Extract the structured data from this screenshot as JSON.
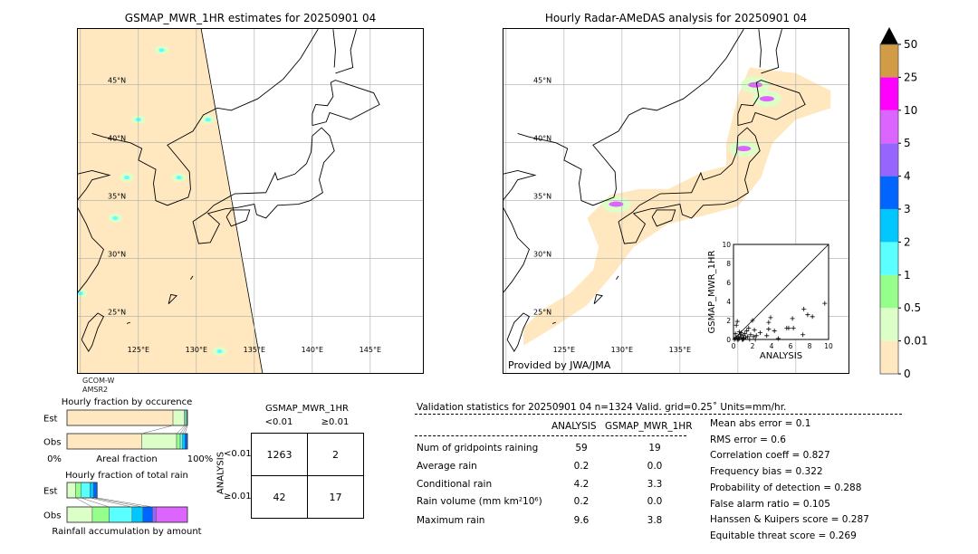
{
  "left_map": {
    "title": "GSMAP_MWR_1HR estimates for 20250901 04",
    "sensor_label_1": "GCOM-W",
    "sensor_label_2": "AMSR2",
    "lat_labels": [
      "45°N",
      "40°N",
      "35°N",
      "30°N",
      "25°N"
    ],
    "lon_labels": [
      "125°E",
      "130°E",
      "135°E",
      "140°E",
      "145°E"
    ]
  },
  "right_map": {
    "title": "Hourly Radar-AMeDAS analysis for 20250901 04",
    "credit": "Provided by JWA/JMA",
    "lat_labels": [
      "45°N",
      "40°N",
      "35°N",
      "30°N",
      "25°N"
    ],
    "lon_labels": [
      "125°E",
      "130°E",
      "135°E"
    ]
  },
  "colorbar": {
    "ticks": [
      "0",
      "0.01",
      "0.5",
      "1",
      "2",
      "3",
      "4",
      "5",
      "10",
      "25",
      "50"
    ],
    "colors": [
      "#ffe8c0",
      "#dcffc8",
      "#96ff8c",
      "#5affff",
      "#00c8ff",
      "#0064ff",
      "#9664ff",
      "#dc64ff",
      "#ff00ff",
      "#d29b46"
    ],
    "extend_color": "#000000"
  },
  "chart_data": [
    {
      "type": "scatter",
      "xlabel": "ANALYSIS",
      "ylabel": "GSMAP_MWR_1HR",
      "xlim": [
        0,
        10
      ],
      "ylim": [
        0,
        10
      ],
      "xticks": [
        "0",
        "2",
        "4",
        "6",
        "8",
        "10"
      ],
      "yticks": [
        "0",
        "2",
        "4",
        "6",
        "8",
        "10"
      ],
      "diagonal": true,
      "points": [
        [
          0.1,
          0
        ],
        [
          0.2,
          0.1
        ],
        [
          0.3,
          0.2
        ],
        [
          0.4,
          0
        ],
        [
          0.5,
          0.3
        ],
        [
          0.6,
          0.1
        ],
        [
          0.7,
          0.5
        ],
        [
          0.8,
          0.2
        ],
        [
          0.9,
          0
        ],
        [
          1.0,
          0.4
        ],
        [
          1.1,
          0.1
        ],
        [
          1.2,
          0.6
        ],
        [
          1.3,
          0.2
        ],
        [
          1.5,
          0.3
        ],
        [
          1.6,
          1.2
        ],
        [
          1.8,
          0.5
        ],
        [
          2.0,
          2.0
        ],
        [
          2.1,
          0.3
        ],
        [
          2.2,
          1.0
        ],
        [
          2.4,
          0.4
        ],
        [
          2.8,
          0.7
        ],
        [
          0.3,
          1.5
        ],
        [
          0.4,
          1.9
        ],
        [
          3.5,
          0.4
        ],
        [
          3.7,
          1.1
        ],
        [
          3.7,
          1.8
        ],
        [
          3.9,
          2.3
        ],
        [
          4.3,
          0.9
        ],
        [
          4.7,
          0.1
        ],
        [
          5.6,
          1.2
        ],
        [
          5.8,
          1.2
        ],
        [
          6.2,
          2.2
        ],
        [
          6.3,
          1.2
        ],
        [
          7.3,
          0.5
        ],
        [
          7.4,
          3.2
        ],
        [
          7.8,
          2.6
        ],
        [
          8.3,
          2.4
        ],
        [
          9.6,
          3.8
        ],
        [
          0.2,
          0.6
        ],
        [
          0.6,
          0.8
        ],
        [
          1.4,
          0.9
        ],
        [
          0.5,
          0.0
        ],
        [
          1.0,
          0.0
        ],
        [
          1.7,
          0.0
        ],
        [
          2.3,
          0.0
        ],
        [
          0.8,
          0.7
        ]
      ]
    },
    {
      "type": "bar",
      "title": "Hourly fraction by occurence",
      "xlabel": "Areal fraction",
      "x_tick_left": "0%",
      "x_tick_right": "100%",
      "categories": [
        "Est",
        "Obs"
      ],
      "stacked_percent": {
        "Est": [
          88,
          9.5,
          1,
          1,
          0.5
        ],
        "Obs": [
          62,
          29,
          3,
          2,
          2,
          2
        ]
      }
    },
    {
      "type": "bar",
      "title": "Hourly fraction of total rain",
      "xlabel": "Rainfall accumulation by amount",
      "categories": [
        "Est",
        "Obs"
      ],
      "stacked_percent": {
        "Est": [
          7,
          4.5,
          7.5,
          3,
          3
        ],
        "Obs": [
          21,
          14,
          19,
          9,
          8,
          3,
          26
        ]
      }
    }
  ],
  "contingency": {
    "title": "GSMAP_MWR_1HR",
    "col_labels": [
      "<0.01",
      "≥0.01"
    ],
    "row_axis": "ANALYSIS",
    "row_labels": [
      "<0.01",
      "≥0.01"
    ],
    "cells": [
      [
        "1263",
        "2"
      ],
      [
        "42",
        "17"
      ]
    ]
  },
  "stats": {
    "header": "Validation statistics for 20250901 04  n=1324 Valid. grid=0.25˚ Units=mm/hr.",
    "col_analysis": "ANALYSIS",
    "col_gsmap": "GSMAP_MWR_1HR",
    "rows": [
      {
        "label": "Num of gridpoints raining",
        "analysis": "59",
        "gsmap": "19"
      },
      {
        "label": "Average rain",
        "analysis": "0.2",
        "gsmap": "0.0"
      },
      {
        "label": "Conditional rain",
        "analysis": "4.2",
        "gsmap": "3.3"
      },
      {
        "label": "Rain volume (mm km²10⁶)",
        "analysis": "0.2",
        "gsmap": "0.0"
      },
      {
        "label": "Maximum rain",
        "analysis": "9.6",
        "gsmap": "3.8"
      }
    ],
    "scores": [
      "Mean abs error =    0.1",
      "RMS error =    0.6",
      "Correlation coeff =  0.827",
      "Frequency bias =  0.322",
      "Probability of detection =  0.288",
      "False alarm ratio =  0.105",
      "Hanssen & Kuipers score =  0.287",
      "Equitable threat score =  0.269"
    ]
  }
}
